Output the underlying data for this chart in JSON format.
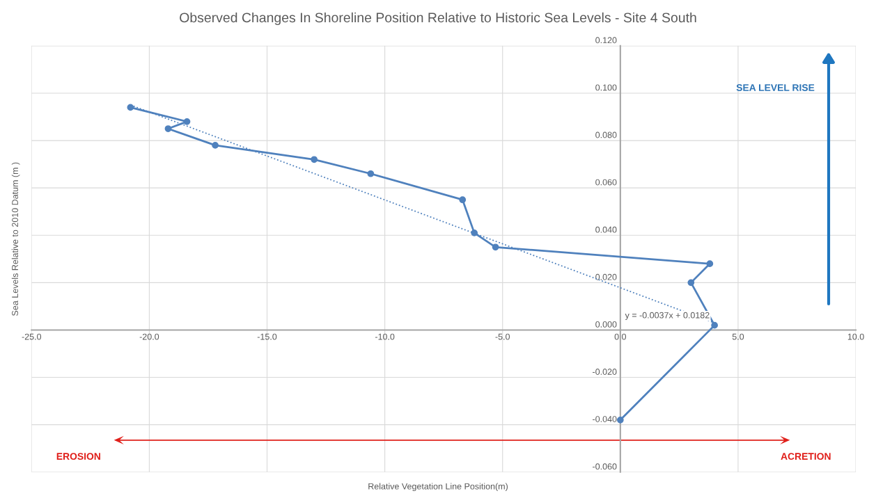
{
  "chart_data": {
    "type": "line",
    "title": "Observed Changes In Shoreline Position Relative to Historic Sea Levels - Site 4 South",
    "xlabel": "Relative Vegetation Line Position(m)",
    "ylabel": "Sea Levels Relative to 2010 Datum (m )",
    "x": [
      -20.8,
      -18.4,
      -19.2,
      -17.2,
      -13.0,
      -10.6,
      -6.7,
      -6.2,
      -5.3,
      3.8,
      3.0,
      4.0,
      0.0
    ],
    "series": [
      {
        "type": "line",
        "color": "#4f81bd",
        "marker": "circle",
        "line_style": "solid",
        "values": [
          0.094,
          0.088,
          0.085,
          0.078,
          0.072,
          0.066,
          0.055,
          0.041,
          0.035,
          0.028,
          0.02,
          0.002,
          -0.038
        ]
      },
      {
        "type": "line",
        "color": "#4f81bd",
        "marker": "none",
        "line_style": "dotted",
        "x": [
          -20.8,
          4.0
        ],
        "values": [
          0.095,
          0.003
        ]
      }
    ],
    "annotations": [
      {
        "text": "y = -0.0037x + 0.0182",
        "x": 4.0,
        "y": 0.003
      },
      "SEA LEVEL RISE",
      "EROSION",
      "ACRETION"
    ],
    "xlim": [
      -25,
      10
    ],
    "ylim": [
      -0.06,
      0.12
    ],
    "xticks": [
      {
        "value": -25,
        "label": "-25.0"
      },
      {
        "value": -20,
        "label": "-20.0"
      },
      {
        "value": -15,
        "label": "-15.0"
      },
      {
        "value": -10,
        "label": "-10.0"
      },
      {
        "value": -5,
        "label": "-5.0"
      },
      {
        "value": 0,
        "label": "0.0"
      },
      {
        "value": 5,
        "label": "5.0"
      },
      {
        "value": 10,
        "label": "10.0"
      }
    ],
    "yticks": [
      {
        "value": -0.06,
        "label": "-0.060"
      },
      {
        "value": -0.04,
        "label": "-0.040"
      },
      {
        "value": -0.02,
        "label": "-0.020"
      },
      {
        "value": 0,
        "label": "0.000"
      },
      {
        "value": 0.02,
        "label": "0.020"
      },
      {
        "value": 0.04,
        "label": "0.040"
      },
      {
        "value": 0.06,
        "label": "0.060"
      },
      {
        "value": 0.08,
        "label": "0.080"
      },
      {
        "value": 0.1,
        "label": "0.100"
      },
      {
        "value": 0.12,
        "label": "0.120"
      }
    ],
    "grid": true,
    "legend": false
  }
}
